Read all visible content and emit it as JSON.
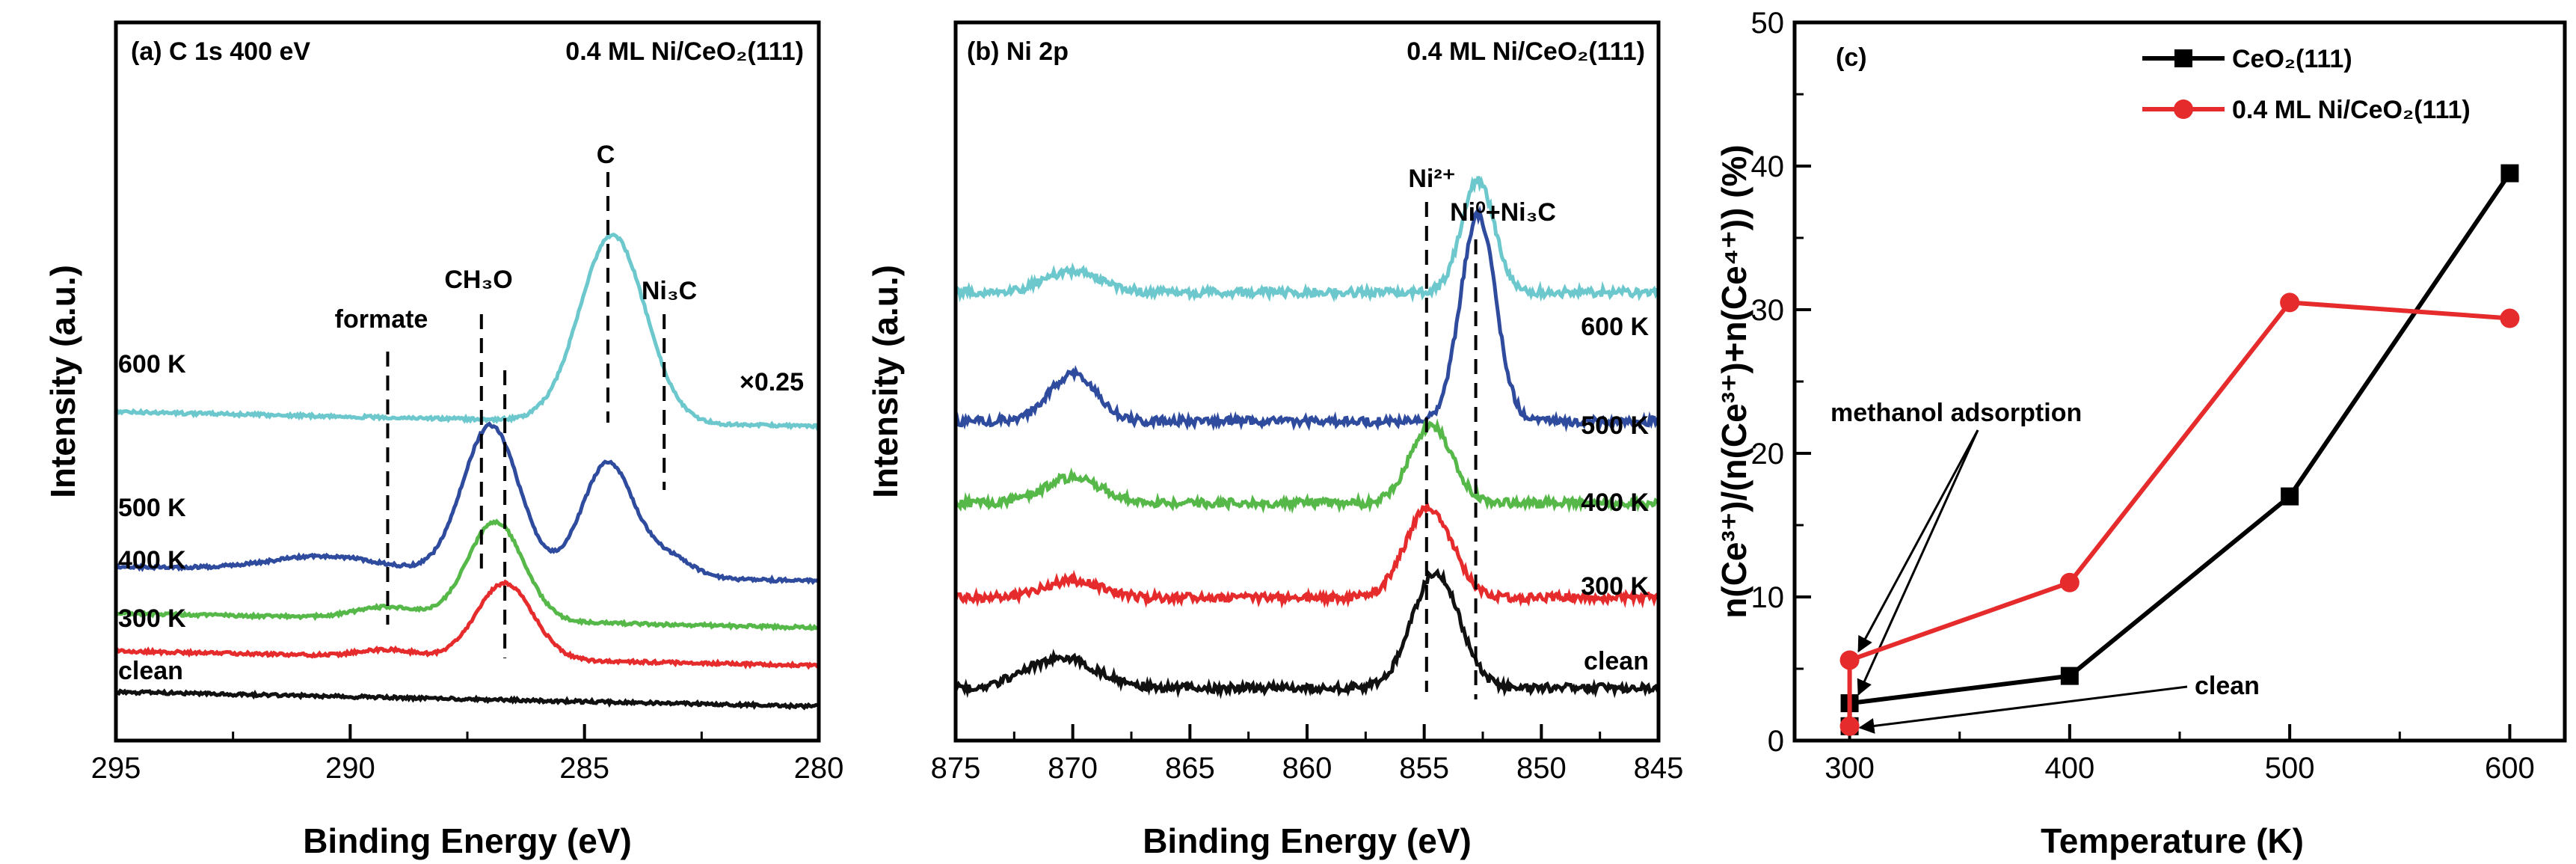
{
  "figure": {
    "panels": [
      {
        "id": "a",
        "label": "(a) C 1s 400 eV",
        "sample": "0.4 ML Ni/CeO₂(111)",
        "xlabel": "Binding Energy (eV)",
        "ylabel": "Intensity (a.u.)",
        "xticks": [
          "295",
          "290",
          "285",
          "280"
        ],
        "scale_note": "×0.25",
        "peak_labels": [
          "formate",
          "CH₃O",
          "C",
          "Ni₃C"
        ],
        "curve_labels": [
          "600 K",
          "500 K",
          "400 K",
          "300 K",
          "clean"
        ]
      },
      {
        "id": "b",
        "label": "(b) Ni 2p",
        "sample": "0.4 ML Ni/CeO₂(111)",
        "xlabel": "Binding Energy (eV)",
        "ylabel": "Intensity (a.u.)",
        "xticks": [
          "875",
          "870",
          "865",
          "860",
          "855",
          "850",
          "845"
        ],
        "peak_labels": [
          "Ni²⁺",
          "Ni⁰+Ni₃C"
        ],
        "curve_labels": [
          "600 K",
          "500 K",
          "400 K",
          "300 K",
          "clean"
        ]
      },
      {
        "id": "c",
        "label": "(c)",
        "xlabel": "Temperature (K)",
        "ylabel": "n(Ce³⁺)/(n(Ce³⁺)+n(Ce⁴⁺)) (%)",
        "xticks": [
          "300",
          "400",
          "500",
          "600"
        ],
        "yticks": [
          "0",
          "10",
          "20",
          "30",
          "40",
          "50"
        ],
        "annotations": [
          "methanol adsorption",
          "clean"
        ]
      }
    ]
  },
  "chart_data": [
    {
      "type": "line",
      "title": "(a) C 1s 400 eV",
      "xlabel": "Binding Energy (eV)",
      "ylabel": "Intensity (a.u.)",
      "xlim": [
        295,
        280
      ],
      "x_reversed": true,
      "y_scale": "arbitrary (stacked, offset)",
      "series": [
        {
          "name": "600 K",
          "color": "#6cc8cc",
          "scale": "×0.25",
          "offset": 5.0,
          "peaks": [
            {
              "x": 284.4,
              "height": 3.2,
              "width": 0.7
            }
          ]
        },
        {
          "name": "500 K",
          "color": "#2f4b9e",
          "offset": 2.35,
          "peaks": [
            {
              "x": 290.5,
              "height": 0.25,
              "width": 1.2
            },
            {
              "x": 287.0,
              "height": 2.55,
              "width": 0.6
            },
            {
              "x": 284.5,
              "height": 1.95,
              "width": 0.55
            },
            {
              "x": 283.2,
              "height": 0.35,
              "width": 0.5
            }
          ]
        },
        {
          "name": "400 K",
          "color": "#55b848",
          "offset": 1.55,
          "peaks": [
            {
              "x": 289.2,
              "height": 0.2,
              "width": 0.7
            },
            {
              "x": 286.9,
              "height": 1.7,
              "width": 0.6
            }
          ]
        },
        {
          "name": "300 K",
          "color": "#e52b2b",
          "offset": 0.9,
          "peaks": [
            {
              "x": 289.2,
              "height": 0.12,
              "width": 0.6
            },
            {
              "x": 286.7,
              "height": 1.3,
              "width": 0.6
            }
          ]
        },
        {
          "name": "clean",
          "color": "#111111",
          "offset": 0.2,
          "peaks": []
        }
      ],
      "reference_lines_x": [
        289.2,
        287.2,
        286.7,
        284.5,
        283.3
      ]
    },
    {
      "type": "line",
      "title": "(b) Ni 2p",
      "xlabel": "Binding Energy (eV)",
      "ylabel": "Intensity (a.u.)",
      "xlim": [
        875,
        845
      ],
      "x_reversed": true,
      "y_scale": "arbitrary (stacked, offset)",
      "series": [
        {
          "name": "600 K",
          "color": "#6cc8cc",
          "offset": 4.95,
          "peaks": [
            {
              "x": 870.0,
              "height": 0.25,
              "width": 1.2
            },
            {
              "x": 852.7,
              "height": 1.3,
              "width": 0.7
            }
          ]
        },
        {
          "name": "500 K",
          "color": "#2f4b9e",
          "offset": 3.45,
          "peaks": [
            {
              "x": 870.0,
              "height": 0.55,
              "width": 1.0
            },
            {
              "x": 852.7,
              "height": 2.4,
              "width": 0.75
            }
          ]
        },
        {
          "name": "400 K",
          "color": "#55b848",
          "offset": 2.5,
          "peaks": [
            {
              "x": 870.0,
              "height": 0.3,
              "width": 1.2
            },
            {
              "x": 854.7,
              "height": 0.9,
              "width": 0.9
            }
          ]
        },
        {
          "name": "300 K",
          "color": "#e52b2b",
          "offset": 1.4,
          "peaks": [
            {
              "x": 870.0,
              "height": 0.2,
              "width": 1.2
            },
            {
              "x": 854.8,
              "height": 1.05,
              "width": 1.0
            }
          ]
        },
        {
          "name": "clean",
          "color": "#111111",
          "offset": 0.35,
          "peaks": [
            {
              "x": 870.5,
              "height": 0.35,
              "width": 1.5
            },
            {
              "x": 854.5,
              "height": 1.35,
              "width": 1.0
            }
          ]
        }
      ],
      "reference_lines_x": [
        854.9,
        852.8
      ]
    },
    {
      "type": "line",
      "title": "(c)",
      "xlabel": "Temperature (K)",
      "ylabel": "n(Ce³⁺)/(n(Ce³⁺)+n(Ce⁴⁺)) (%)",
      "xlim": [
        275,
        625
      ],
      "ylim": [
        0,
        50
      ],
      "grid": false,
      "legend": "top-right",
      "series": [
        {
          "name": "CeO₂(111)",
          "color": "#000000",
          "marker": "square",
          "x": [
            300,
            300,
            400,
            500,
            600
          ],
          "y": [
            1.0,
            2.6,
            4.5,
            17.0,
            39.5
          ]
        },
        {
          "name": "0.4 ML Ni/CeO₂(111)",
          "color": "#e52b2b",
          "marker": "circle",
          "x": [
            300,
            300,
            400,
            500,
            600
          ],
          "y": [
            1.0,
            5.6,
            11.0,
            30.5,
            29.4
          ]
        }
      ],
      "annotations": [
        "methanol adsorption",
        "clean"
      ]
    }
  ]
}
